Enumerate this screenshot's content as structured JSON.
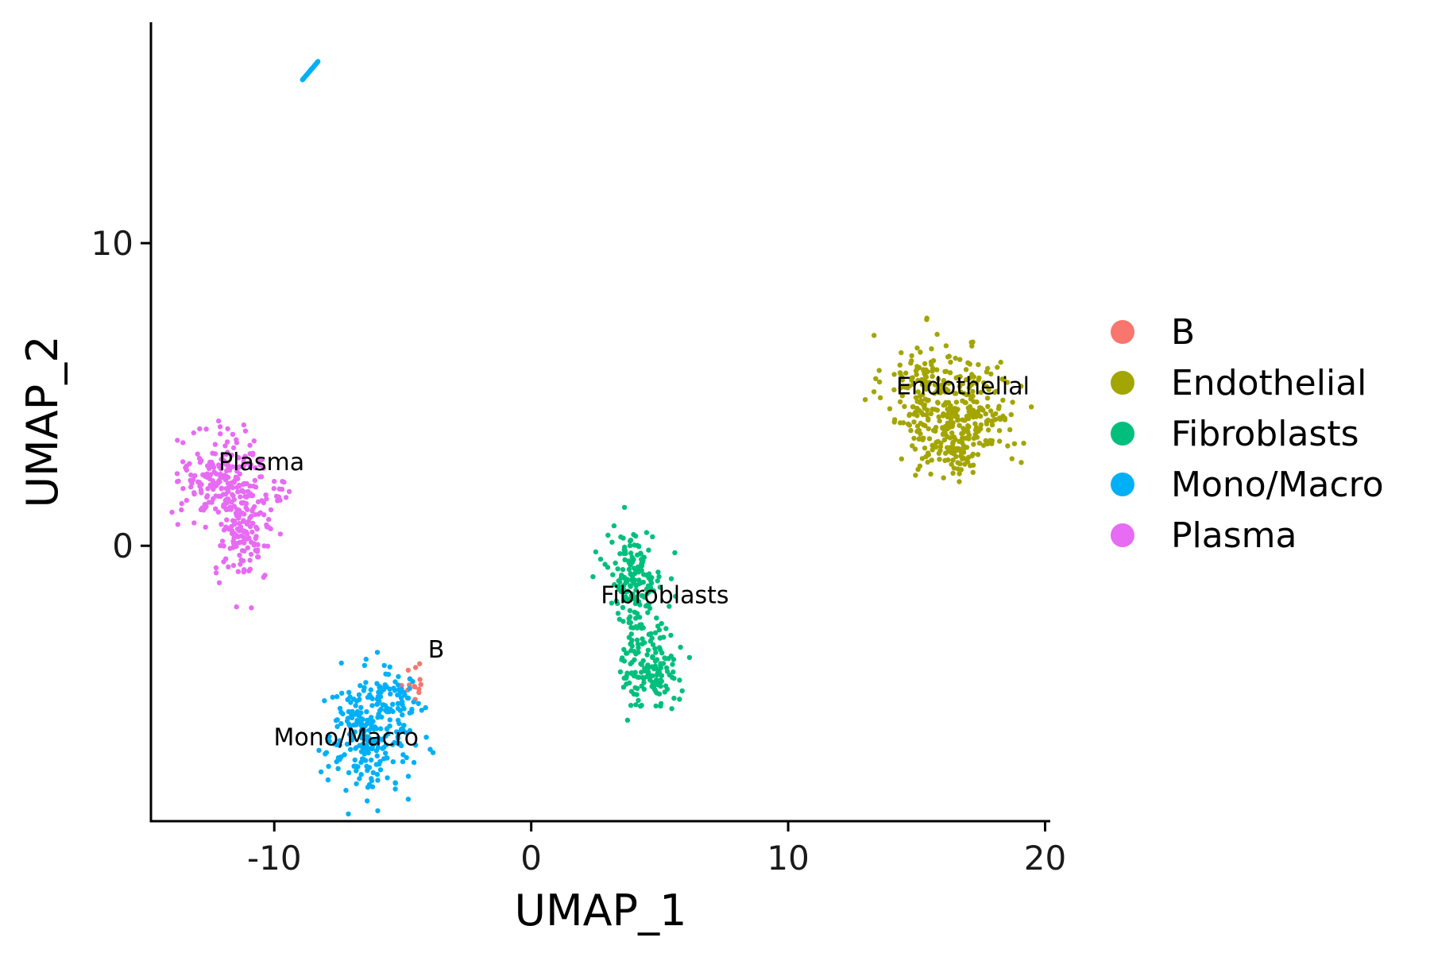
{
  "chart_data": {
    "type": "scatter",
    "title": "",
    "xlabel": "UMAP_1",
    "ylabel": "UMAP_2",
    "xlim": [
      -14.8,
      20.2
    ],
    "ylim": [
      -9.1,
      17.3
    ],
    "xticks": [
      -10,
      0,
      10,
      20
    ],
    "yticks": [
      0,
      10
    ],
    "xtick_labels": [
      "-10",
      "0",
      "10",
      "20"
    ],
    "ytick_labels": [
      "0",
      "10"
    ],
    "grid": false,
    "legend": {
      "position": "right",
      "entries": [
        "B",
        "Endothelial",
        "Fibroblasts",
        "Mono/Macro",
        "Plasma"
      ]
    },
    "series": [
      {
        "name": "B",
        "color": "#F8766D",
        "clusters": [
          {
            "cx": -4.6,
            "cy": -4.4,
            "sx": 0.25,
            "sy": 0.35,
            "n": 14
          }
        ]
      },
      {
        "name": "Endothelial",
        "color": "#A3A500",
        "clusters": [
          {
            "cx": 15.4,
            "cy": 5.2,
            "sx": 0.85,
            "sy": 0.9,
            "n": 170
          },
          {
            "cx": 17.3,
            "cy": 4.3,
            "sx": 0.85,
            "sy": 0.9,
            "n": 170
          },
          {
            "cx": 16.2,
            "cy": 3.3,
            "sx": 0.8,
            "sy": 0.55,
            "n": 90
          }
        ]
      },
      {
        "name": "Fibroblasts",
        "color": "#00BF7D",
        "clusters": [
          {
            "cx": 4.0,
            "cy": -1.0,
            "sx": 0.55,
            "sy": 0.75,
            "n": 160
          },
          {
            "cx": 4.6,
            "cy": -3.9,
            "sx": 0.55,
            "sy": 0.75,
            "n": 160
          }
        ]
      },
      {
        "name": "Mono/Macro",
        "color": "#00B0F6",
        "clusters": [
          {
            "cx": -6.3,
            "cy": -6.2,
            "sx": 0.85,
            "sy": 0.95,
            "n": 260
          },
          {
            "cx": -5.2,
            "cy": -5.2,
            "sx": 0.45,
            "sy": 0.45,
            "n": 40
          }
        ],
        "line_segment": {
          "x1": -8.9,
          "y1": 15.4,
          "x2": -8.3,
          "y2": 16.0,
          "n": 22
        }
      },
      {
        "name": "Plasma",
        "color": "#E76BF3",
        "clusters": [
          {
            "cx": -12.0,
            "cy": 2.3,
            "sx": 0.8,
            "sy": 0.7,
            "n": 200
          },
          {
            "cx": -11.2,
            "cy": 0.4,
            "sx": 0.55,
            "sy": 0.8,
            "n": 140
          },
          {
            "cx": -9.8,
            "cy": 1.8,
            "sx": 0.3,
            "sy": 0.2,
            "n": 12
          }
        ]
      }
    ],
    "annotations": [
      {
        "text": "Plasma",
        "x": -10.5,
        "y": 2.5
      },
      {
        "text": "Endothelial",
        "x": 16.8,
        "y": 5.0
      },
      {
        "text": "Fibroblasts",
        "x": 5.2,
        "y": -1.9
      },
      {
        "text": "B",
        "x": -3.7,
        "y": -3.7
      },
      {
        "text": "Mono/Macro",
        "x": -7.2,
        "y": -6.6
      }
    ]
  }
}
